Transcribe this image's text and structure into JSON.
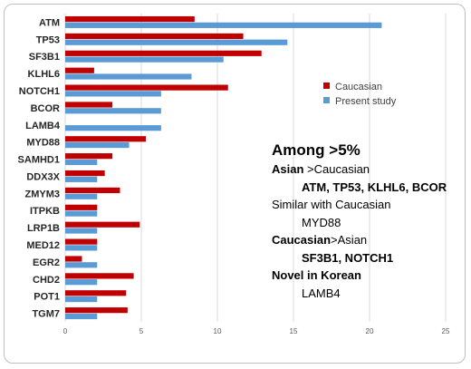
{
  "colors": {
    "caucasian": "#c00000",
    "present_study": "#5b9bd5",
    "grid": "#d9d9d9"
  },
  "chart_data": {
    "type": "bar",
    "orientation": "horizontal",
    "categories": [
      "ATM",
      "TP53",
      "SF3B1",
      "KLHL6",
      "NOTCH1",
      "BCOR",
      "LAMB4",
      "MYD88",
      "SAMHD1",
      "DDX3X",
      "ZMYM3",
      "ITPKB",
      "LRP1B",
      "MED12",
      "EGR2",
      "CHD2",
      "POT1",
      "TGM7"
    ],
    "series": [
      {
        "name": "Caucasian",
        "values": [
          8.5,
          11.7,
          12.9,
          1.9,
          10.7,
          3.1,
          0,
          5.3,
          3.1,
          2.6,
          3.6,
          2.1,
          4.9,
          2.1,
          1.1,
          4.5,
          4.0,
          4.1
        ]
      },
      {
        "name": "Present study",
        "values": [
          20.8,
          14.6,
          10.4,
          8.3,
          6.3,
          6.3,
          6.3,
          4.2,
          2.1,
          2.1,
          2.1,
          2.1,
          2.1,
          2.1,
          2.1,
          2.1,
          2.1,
          2.1
        ]
      }
    ],
    "xlim": [
      0,
      25
    ],
    "xticks": [
      "0",
      "5",
      "10",
      "15",
      "20",
      "25"
    ],
    "grid": true,
    "legend_position": "right"
  },
  "annotation": {
    "title": "Among >5%",
    "asian_vs_caucasian_a": "Asian",
    "asian_vs_caucasian_b": " >Caucasian",
    "asian_genes": "ATM, TP53, KLHL6, BCOR",
    "similar_label": "Similar with Caucasian",
    "similar_genes": "MYD88",
    "caucasian_vs_asian_a": "Caucasian",
    "caucasian_vs_asian_b": ">Asian",
    "caucasian_genes": "SF3B1, NOTCH1",
    "novel_label": "Novel in Korean",
    "novel_genes": "LAMB4"
  }
}
